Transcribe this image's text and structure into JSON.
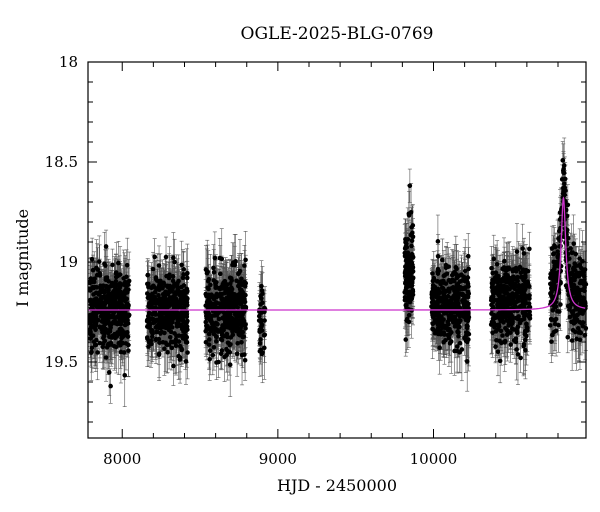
{
  "chart_data": {
    "type": "scatter",
    "title": "OGLE-2025-BLG-0769",
    "xlabel": "HJD - 2450000",
    "ylabel": "I magnitude",
    "xlim": [
      7780,
      10980
    ],
    "ylim": [
      19.88,
      18.0
    ],
    "y_inverted": true,
    "x_ticks": [
      8000,
      9000,
      10000
    ],
    "x_tick_labels": [
      "8000",
      "9000",
      "10000"
    ],
    "y_ticks": [
      18,
      18.5,
      19,
      19.5
    ],
    "y_tick_labels": [
      "18",
      "18.5",
      "19",
      "19.5"
    ],
    "grid": false,
    "colors": {
      "points": "#000000",
      "errorbars": "#555555",
      "model": "#cc33cc"
    },
    "observing_seasons": [
      {
        "start": 7790,
        "end": 8045,
        "median_mag": 19.24,
        "scatter": 0.17,
        "count": 420
      },
      {
        "start": 8160,
        "end": 8420,
        "median_mag": 19.24,
        "scatter": 0.17,
        "count": 420
      },
      {
        "start": 8535,
        "end": 8795,
        "median_mag": 19.24,
        "scatter": 0.17,
        "count": 420
      },
      {
        "start": 8880,
        "end": 8920,
        "median_mag": 19.27,
        "scatter": 0.17,
        "count": 40
      },
      {
        "start": 9815,
        "end": 9870,
        "median_mag": 19.05,
        "scatter": 0.2,
        "count": 130
      },
      {
        "start": 9985,
        "end": 10230,
        "median_mag": 19.22,
        "scatter": 0.17,
        "count": 380
      },
      {
        "start": 10370,
        "end": 10620,
        "median_mag": 19.2,
        "scatter": 0.17,
        "count": 380
      },
      {
        "start": 10750,
        "end": 10980,
        "median_mag": 19.2,
        "scatter": 0.17,
        "count": 330
      }
    ],
    "series": [
      {
        "type": "line",
        "baseline_mag": 19.24,
        "peak_hjd": 10835,
        "peak_mag": 18.68,
        "width_days": 18,
        "points": [
          {
            "x": 7780,
            "y": 19.24
          },
          {
            "x": 10740,
            "y": 19.24
          },
          {
            "x": 10780,
            "y": 19.23
          },
          {
            "x": 10800,
            "y": 19.19
          },
          {
            "x": 10812,
            "y": 19.1
          },
          {
            "x": 10822,
            "y": 18.93
          },
          {
            "x": 10830,
            "y": 18.75
          },
          {
            "x": 10835,
            "y": 18.68
          },
          {
            "x": 10840,
            "y": 18.75
          },
          {
            "x": 10848,
            "y": 18.93
          },
          {
            "x": 10858,
            "y": 19.1
          },
          {
            "x": 10870,
            "y": 19.19
          },
          {
            "x": 10890,
            "y": 19.23
          },
          {
            "x": 10980,
            "y": 19.24
          }
        ]
      }
    ]
  }
}
